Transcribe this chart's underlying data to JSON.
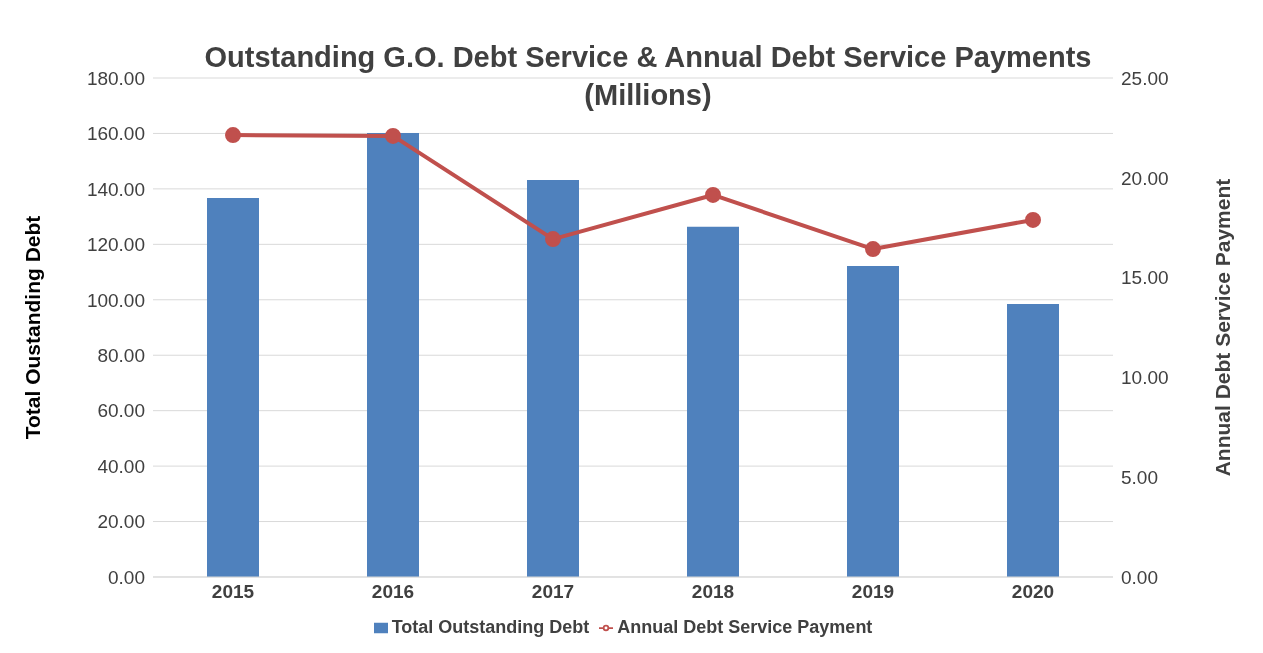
{
  "chart_data": {
    "type": "bar",
    "title": "Outstanding G.O. Debt Service & Annual Debt Service Payments (Millions)",
    "categories": [
      "2015",
      "2016",
      "2017",
      "2018",
      "2019",
      "2020"
    ],
    "series": [
      {
        "name": "Total Outstanding Debt",
        "color": "#4f81bd",
        "values": [
          136.7,
          160.2,
          143.2,
          126.3,
          112.2,
          98.5
        ]
      },
      {
        "name": "Annual Debt Service Payment",
        "type": "line",
        "axis": "y2",
        "color": "#c0504d",
        "values": [
          22.14,
          22.1,
          16.93,
          19.14,
          16.43,
          17.89
        ]
      }
    ],
    "ylabel": "Total Oustanding Debt",
    "y2label": "Annual Debt Service Payment",
    "ylim": [
      0,
      180
    ],
    "yticks": [
      {
        "value": 0,
        "label": "0.00"
      },
      {
        "value": 20,
        "label": "20.00"
      },
      {
        "value": 40,
        "label": "40.00"
      },
      {
        "value": 60,
        "label": "60.00"
      },
      {
        "value": 80,
        "label": "80.00"
      },
      {
        "value": 100,
        "label": "100.00"
      },
      {
        "value": 120,
        "label": "120.00"
      },
      {
        "value": 140,
        "label": "140.00"
      },
      {
        "value": 160,
        "label": "160.00"
      },
      {
        "value": 180,
        "label": "180.00"
      }
    ],
    "y2lim": [
      0,
      25
    ],
    "y2ticks": [
      {
        "value": 0,
        "label": "0.00"
      },
      {
        "value": 5,
        "label": "5.00"
      },
      {
        "value": 10,
        "label": "10.00"
      },
      {
        "value": 15,
        "label": "15.00"
      },
      {
        "value": 20,
        "label": "20.00"
      },
      {
        "value": 25,
        "label": "25.00"
      }
    ],
    "grid": "y",
    "legend": "bottom",
    "marker": "circle",
    "line_style": "solid"
  }
}
